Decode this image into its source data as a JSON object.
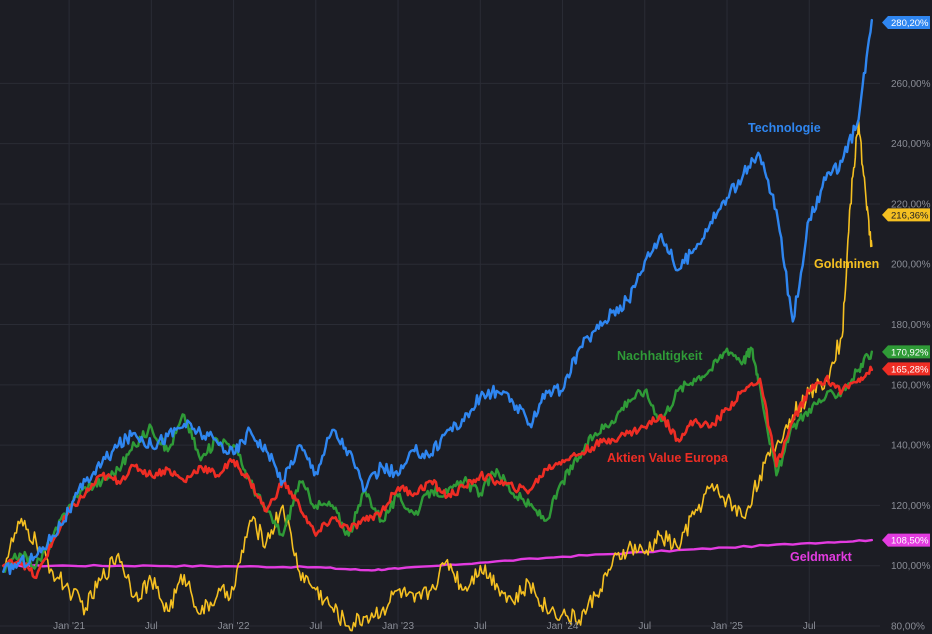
{
  "chart_data": {
    "type": "line",
    "ylim": [
      80,
      285
    ],
    "yticks": [
      "80,00%",
      "100,00%",
      "120,00%",
      "140,00%",
      "160,00%",
      "180,00%",
      "200,00%",
      "220,00%",
      "240,00%",
      "260,00%"
    ],
    "ytick_values": [
      80,
      100,
      120,
      140,
      160,
      180,
      200,
      220,
      240,
      260
    ],
    "xticks": [
      "Jan '21",
      "Jul",
      "Jan '22",
      "Jul",
      "Jan '23",
      "Jul",
      "Jan '24",
      "Jul",
      "Jan '25",
      "Jul"
    ],
    "xtick_values": [
      2021.0,
      2021.5,
      2022.0,
      2022.5,
      2023.0,
      2023.5,
      2024.0,
      2024.5,
      2025.0,
      2025.5
    ],
    "xlim": [
      2020.58,
      2025.93
    ],
    "series": [
      {
        "name": "Technologie",
        "color": "#2f86f0",
        "badge": "280,20%",
        "badge_value": 280.2,
        "x": [
          2020.6,
          2020.7,
          2020.8,
          2020.9,
          2021.0,
          2021.1,
          2021.2,
          2021.3,
          2021.4,
          2021.5,
          2021.6,
          2021.7,
          2021.8,
          2021.9,
          2022.0,
          2022.1,
          2022.2,
          2022.3,
          2022.4,
          2022.5,
          2022.6,
          2022.7,
          2022.8,
          2022.9,
          2023.0,
          2023.1,
          2023.2,
          2023.3,
          2023.4,
          2023.5,
          2023.6,
          2023.7,
          2023.8,
          2023.9,
          2024.0,
          2024.1,
          2024.2,
          2024.3,
          2024.4,
          2024.5,
          2024.6,
          2024.7,
          2024.8,
          2024.9,
          2025.0,
          2025.1,
          2025.2,
          2025.3,
          2025.4,
          2025.5,
          2025.6,
          2025.7,
          2025.8,
          2025.88
        ],
        "values": [
          98,
          101,
          103,
          110,
          118,
          128,
          134,
          140,
          144,
          140,
          143,
          147,
          144,
          141,
          137,
          145,
          138,
          128,
          140,
          131,
          145,
          138,
          125,
          133,
          130,
          138,
          137,
          145,
          148,
          156,
          158,
          154,
          147,
          158,
          158,
          172,
          178,
          184,
          188,
          201,
          210,
          198,
          205,
          214,
          222,
          230,
          236,
          218,
          181,
          215,
          228,
          234,
          248,
          281
        ]
      },
      {
        "name": "Goldminen",
        "color": "#f5c021",
        "badge": "216,36%",
        "badge_value": 216.36,
        "x": [
          2020.6,
          2020.7,
          2020.8,
          2020.9,
          2021.0,
          2021.1,
          2021.2,
          2021.3,
          2021.4,
          2021.5,
          2021.6,
          2021.7,
          2021.8,
          2021.9,
          2022.0,
          2022.1,
          2022.2,
          2022.3,
          2022.4,
          2022.5,
          2022.6,
          2022.7,
          2022.8,
          2022.9,
          2023.0,
          2023.1,
          2023.2,
          2023.3,
          2023.4,
          2023.5,
          2023.6,
          2023.7,
          2023.8,
          2023.9,
          2024.0,
          2024.1,
          2024.2,
          2024.3,
          2024.4,
          2024.5,
          2024.6,
          2024.7,
          2024.8,
          2024.9,
          2025.0,
          2025.1,
          2025.2,
          2025.3,
          2025.4,
          2025.5,
          2025.6,
          2025.7,
          2025.75,
          2025.8,
          2025.85,
          2025.88
        ],
        "values": [
          100,
          114,
          108,
          98,
          92,
          86,
          96,
          104,
          90,
          95,
          85,
          97,
          84,
          90,
          92,
          115,
          108,
          120,
          98,
          92,
          86,
          80,
          83,
          85,
          92,
          88,
          92,
          102,
          92,
          100,
          94,
          88,
          94,
          86,
          84,
          82,
          90,
          100,
          106,
          104,
          110,
          106,
          117,
          126,
          122,
          116,
          130,
          140,
          150,
          157,
          162,
          176,
          220,
          248,
          218,
          206
        ]
      },
      {
        "name": "Nachhaltigkeit",
        "color": "#2f9b37",
        "badge": "170,92%",
        "badge_value": 170.92,
        "x": [
          2020.6,
          2020.7,
          2020.8,
          2020.9,
          2021.0,
          2021.1,
          2021.2,
          2021.3,
          2021.4,
          2021.5,
          2021.6,
          2021.7,
          2021.8,
          2021.9,
          2022.0,
          2022.1,
          2022.2,
          2022.3,
          2022.4,
          2022.5,
          2022.6,
          2022.7,
          2022.8,
          2022.9,
          2023.0,
          2023.1,
          2023.2,
          2023.3,
          2023.4,
          2023.5,
          2023.6,
          2023.7,
          2023.8,
          2023.9,
          2024.0,
          2024.1,
          2024.2,
          2024.3,
          2024.4,
          2024.5,
          2024.6,
          2024.7,
          2024.8,
          2024.9,
          2025.0,
          2025.1,
          2025.15,
          2025.2,
          2025.3,
          2025.4,
          2025.5,
          2025.6,
          2025.7,
          2025.8,
          2025.88
        ],
        "values": [
          98,
          104,
          100,
          109,
          120,
          126,
          128,
          132,
          140,
          146,
          138,
          150,
          135,
          142,
          140,
          128,
          118,
          110,
          128,
          120,
          120,
          110,
          125,
          115,
          123,
          117,
          125,
          124,
          128,
          124,
          132,
          124,
          120,
          115,
          128,
          136,
          144,
          148,
          155,
          158,
          148,
          158,
          162,
          165,
          172,
          168,
          172,
          160,
          130,
          146,
          152,
          156,
          158,
          165,
          171
        ]
      },
      {
        "name": "Aktien Value Europa",
        "color": "#ee2d24",
        "badge": "165,28%",
        "badge_value": 165.28,
        "x": [
          2020.6,
          2020.7,
          2020.8,
          2020.9,
          2021.0,
          2021.1,
          2021.2,
          2021.3,
          2021.4,
          2021.5,
          2021.6,
          2021.7,
          2021.8,
          2021.9,
          2022.0,
          2022.1,
          2022.2,
          2022.3,
          2022.4,
          2022.5,
          2022.6,
          2022.7,
          2022.8,
          2022.9,
          2023.0,
          2023.1,
          2023.2,
          2023.3,
          2023.4,
          2023.5,
          2023.6,
          2023.7,
          2023.8,
          2023.9,
          2024.0,
          2024.1,
          2024.2,
          2024.3,
          2024.4,
          2024.5,
          2024.6,
          2024.7,
          2024.8,
          2024.9,
          2025.0,
          2025.1,
          2025.2,
          2025.3,
          2025.4,
          2025.5,
          2025.6,
          2025.7,
          2025.8,
          2025.88
        ],
        "values": [
          100,
          102,
          96,
          108,
          118,
          124,
          130,
          128,
          133,
          130,
          132,
          128,
          133,
          130,
          135,
          128,
          118,
          128,
          120,
          110,
          116,
          112,
          115,
          118,
          126,
          124,
          128,
          123,
          126,
          130,
          128,
          126,
          125,
          132,
          135,
          137,
          140,
          142,
          144,
          146,
          150,
          142,
          148,
          146,
          152,
          158,
          162,
          133,
          148,
          158,
          162,
          158,
          162,
          165
        ]
      },
      {
        "name": "Geldmarkt",
        "color": "#e33be0",
        "badge": "108,50%",
        "badge_value": 108.5,
        "x": [
          2020.6,
          2021.0,
          2021.5,
          2022.0,
          2022.5,
          2022.8,
          2023.0,
          2023.5,
          2024.0,
          2024.5,
          2025.0,
          2025.5,
          2025.88
        ],
        "values": [
          100,
          100,
          100,
          99.8,
          99.5,
          98.5,
          99,
          101,
          103,
          104.5,
          106,
          107.5,
          108.5
        ]
      }
    ]
  }
}
